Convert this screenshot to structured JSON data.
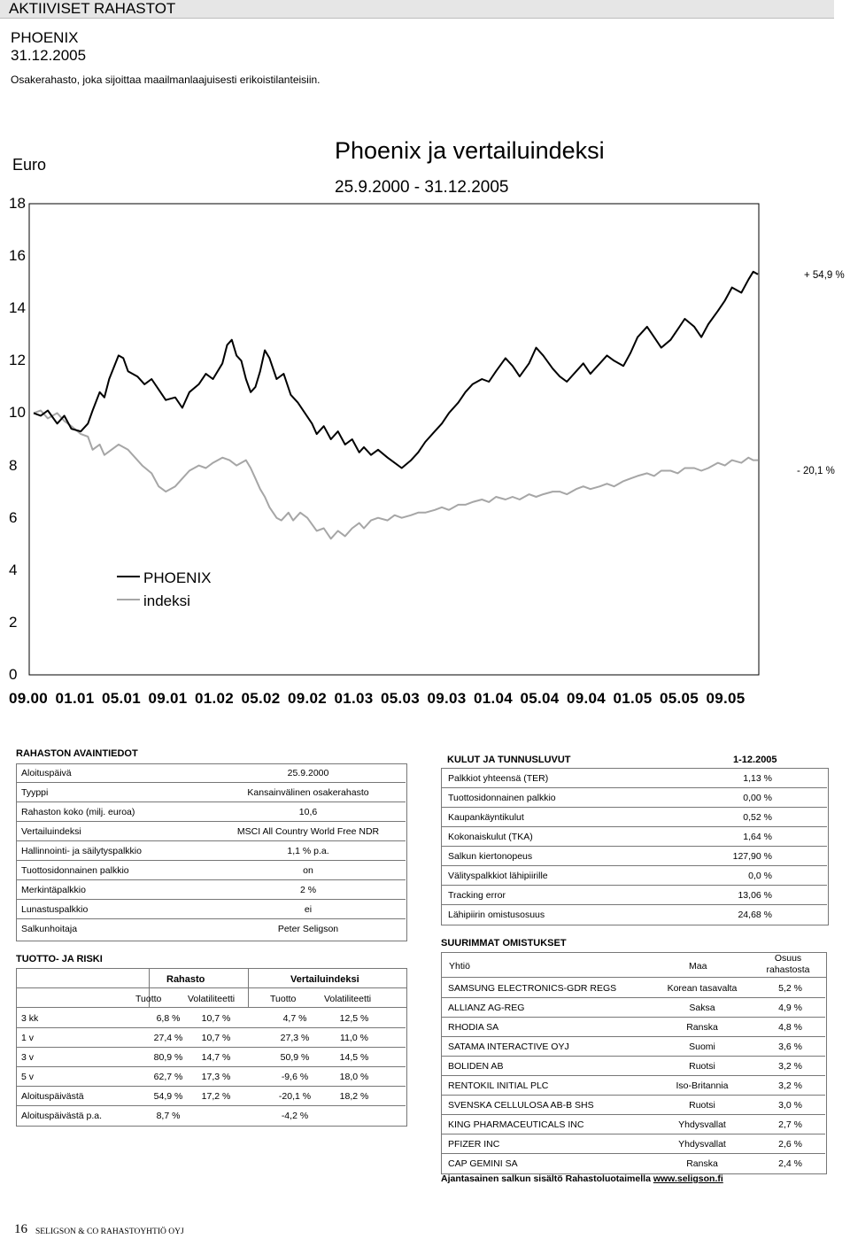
{
  "header": {
    "section_title": "AKTIIVISET RAHASTOT",
    "fund_name": "PHOENIX",
    "date": "31.12.2005",
    "description": "Osakerahasto, joka sijoittaa maailmanlaajuisesti erikoistilanteisiin."
  },
  "chart_data": {
    "type": "line",
    "title": "Phoenix ja vertailuindeksi",
    "subtitle": "25.9.2000 - 31.12.2005",
    "ylabel": "Euro",
    "ylim": [
      0,
      18
    ],
    "yticks": [
      "18",
      "16",
      "14",
      "12",
      "10",
      "8",
      "6",
      "4",
      "2",
      "0"
    ],
    "x_tick_labels": [
      "09.00",
      "01.01",
      "05.01",
      "09.01",
      "01.02",
      "05.02",
      "09.02",
      "01.03",
      "05.03",
      "09.03",
      "01.04",
      "05.04",
      "09.04",
      "01.05",
      "05.05",
      "09.05"
    ],
    "grid": false,
    "legend_position": "left-lower",
    "series": [
      {
        "name": "PHOENIX",
        "color": "#000000",
        "points": [
          [
            0,
            10
          ],
          [
            0.3,
            9.9
          ],
          [
            0.6,
            10.1
          ],
          [
            1,
            9.6
          ],
          [
            1.3,
            9.9
          ],
          [
            1.6,
            9.4
          ],
          [
            2,
            9.3
          ],
          [
            2.3,
            9.6
          ],
          [
            2.5,
            10.1
          ],
          [
            2.8,
            10.8
          ],
          [
            3,
            10.6
          ],
          [
            3.2,
            11.3
          ],
          [
            3.6,
            12.2
          ],
          [
            3.8,
            12.1
          ],
          [
            4,
            11.6
          ],
          [
            4.4,
            11.4
          ],
          [
            4.7,
            11.1
          ],
          [
            5,
            11.3
          ],
          [
            5.3,
            10.9
          ],
          [
            5.6,
            10.5
          ],
          [
            6,
            10.6
          ],
          [
            6.3,
            10.2
          ],
          [
            6.6,
            10.8
          ],
          [
            7,
            11.1
          ],
          [
            7.3,
            11.5
          ],
          [
            7.6,
            11.3
          ],
          [
            8,
            11.9
          ],
          [
            8.2,
            12.6
          ],
          [
            8.4,
            12.8
          ],
          [
            8.6,
            12.2
          ],
          [
            8.8,
            12.0
          ],
          [
            9,
            11.3
          ],
          [
            9.2,
            10.8
          ],
          [
            9.4,
            11.0
          ],
          [
            9.6,
            11.6
          ],
          [
            9.8,
            12.4
          ],
          [
            10,
            12.1
          ],
          [
            10.3,
            11.3
          ],
          [
            10.6,
            11.5
          ],
          [
            10.9,
            10.7
          ],
          [
            11.2,
            10.4
          ],
          [
            11.5,
            10.0
          ],
          [
            11.8,
            9.6
          ],
          [
            12,
            9.2
          ],
          [
            12.3,
            9.5
          ],
          [
            12.6,
            9.0
          ],
          [
            12.9,
            9.3
          ],
          [
            13.2,
            8.8
          ],
          [
            13.5,
            9.0
          ],
          [
            13.8,
            8.5
          ],
          [
            14,
            8.7
          ],
          [
            14.3,
            8.4
          ],
          [
            14.6,
            8.6
          ],
          [
            15,
            8.3
          ],
          [
            15.3,
            8.1
          ],
          [
            15.6,
            7.9
          ],
          [
            16,
            8.2
          ],
          [
            16.3,
            8.5
          ],
          [
            16.6,
            8.9
          ],
          [
            17,
            9.3
          ],
          [
            17.3,
            9.6
          ],
          [
            17.6,
            10.0
          ],
          [
            18,
            10.4
          ],
          [
            18.3,
            10.8
          ],
          [
            18.6,
            11.1
          ],
          [
            19,
            11.3
          ],
          [
            19.3,
            11.2
          ],
          [
            19.6,
            11.6
          ],
          [
            20,
            12.1
          ],
          [
            20.3,
            11.8
          ],
          [
            20.6,
            11.4
          ],
          [
            21,
            11.9
          ],
          [
            21.3,
            12.5
          ],
          [
            21.6,
            12.2
          ],
          [
            22,
            11.7
          ],
          [
            22.3,
            11.4
          ],
          [
            22.6,
            11.2
          ],
          [
            23,
            11.6
          ],
          [
            23.3,
            11.9
          ],
          [
            23.6,
            11.5
          ],
          [
            24,
            11.9
          ],
          [
            24.3,
            12.2
          ],
          [
            24.6,
            12.0
          ],
          [
            25,
            11.8
          ],
          [
            25.3,
            12.3
          ],
          [
            25.6,
            12.9
          ],
          [
            26,
            13.3
          ],
          [
            26.3,
            12.9
          ],
          [
            26.6,
            12.5
          ],
          [
            27,
            12.8
          ],
          [
            27.3,
            13.2
          ],
          [
            27.6,
            13.6
          ],
          [
            28,
            13.3
          ],
          [
            28.3,
            12.9
          ],
          [
            28.6,
            13.4
          ],
          [
            29,
            13.9
          ],
          [
            29.3,
            14.3
          ],
          [
            29.6,
            14.8
          ],
          [
            30,
            14.6
          ],
          [
            30.3,
            15.1
          ],
          [
            30.5,
            15.4
          ],
          [
            30.7,
            15.3
          ]
        ]
      },
      {
        "name": "indeksi",
        "color": "#a6a6a6",
        "points": [
          [
            0,
            10
          ],
          [
            0.3,
            10.1
          ],
          [
            0.6,
            9.8
          ],
          [
            1,
            10
          ],
          [
            1.3,
            9.7
          ],
          [
            1.6,
            9.5
          ],
          [
            2,
            9.2
          ],
          [
            2.3,
            9.1
          ],
          [
            2.5,
            8.6
          ],
          [
            2.8,
            8.8
          ],
          [
            3,
            8.4
          ],
          [
            3.3,
            8.6
          ],
          [
            3.6,
            8.8
          ],
          [
            4,
            8.6
          ],
          [
            4.3,
            8.3
          ],
          [
            4.6,
            8.0
          ],
          [
            5,
            7.7
          ],
          [
            5.3,
            7.2
          ],
          [
            5.6,
            7.0
          ],
          [
            6,
            7.2
          ],
          [
            6.3,
            7.5
          ],
          [
            6.6,
            7.8
          ],
          [
            7,
            8.0
          ],
          [
            7.3,
            7.9
          ],
          [
            7.6,
            8.1
          ],
          [
            8,
            8.3
          ],
          [
            8.3,
            8.2
          ],
          [
            8.6,
            8.0
          ],
          [
            9,
            8.2
          ],
          [
            9.2,
            7.9
          ],
          [
            9.4,
            7.5
          ],
          [
            9.6,
            7.1
          ],
          [
            9.8,
            6.8
          ],
          [
            10,
            6.4
          ],
          [
            10.3,
            6.0
          ],
          [
            10.5,
            5.9
          ],
          [
            10.8,
            6.2
          ],
          [
            11,
            5.9
          ],
          [
            11.3,
            6.2
          ],
          [
            11.6,
            6.0
          ],
          [
            12,
            5.5
          ],
          [
            12.3,
            5.6
          ],
          [
            12.6,
            5.2
          ],
          [
            12.9,
            5.5
          ],
          [
            13.2,
            5.3
          ],
          [
            13.5,
            5.6
          ],
          [
            13.8,
            5.8
          ],
          [
            14,
            5.6
          ],
          [
            14.3,
            5.9
          ],
          [
            14.6,
            6.0
          ],
          [
            15,
            5.9
          ],
          [
            15.3,
            6.1
          ],
          [
            15.6,
            6.0
          ],
          [
            16,
            6.1
          ],
          [
            16.3,
            6.2
          ],
          [
            16.6,
            6.2
          ],
          [
            17,
            6.3
          ],
          [
            17.3,
            6.4
          ],
          [
            17.6,
            6.3
          ],
          [
            18,
            6.5
          ],
          [
            18.3,
            6.5
          ],
          [
            18.6,
            6.6
          ],
          [
            19,
            6.7
          ],
          [
            19.3,
            6.6
          ],
          [
            19.6,
            6.8
          ],
          [
            20,
            6.7
          ],
          [
            20.3,
            6.8
          ],
          [
            20.6,
            6.7
          ],
          [
            21,
            6.9
          ],
          [
            21.3,
            6.8
          ],
          [
            21.6,
            6.9
          ],
          [
            22,
            7.0
          ],
          [
            22.3,
            7.0
          ],
          [
            22.6,
            6.9
          ],
          [
            23,
            7.1
          ],
          [
            23.3,
            7.2
          ],
          [
            23.6,
            7.1
          ],
          [
            24,
            7.2
          ],
          [
            24.3,
            7.3
          ],
          [
            24.6,
            7.2
          ],
          [
            25,
            7.4
          ],
          [
            25.3,
            7.5
          ],
          [
            25.6,
            7.6
          ],
          [
            26,
            7.7
          ],
          [
            26.3,
            7.6
          ],
          [
            26.6,
            7.8
          ],
          [
            27,
            7.8
          ],
          [
            27.3,
            7.7
          ],
          [
            27.6,
            7.9
          ],
          [
            28,
            7.9
          ],
          [
            28.3,
            7.8
          ],
          [
            28.6,
            7.9
          ],
          [
            29,
            8.1
          ],
          [
            29.3,
            8.0
          ],
          [
            29.6,
            8.2
          ],
          [
            30,
            8.1
          ],
          [
            30.3,
            8.3
          ],
          [
            30.5,
            8.2
          ],
          [
            30.7,
            8.2
          ]
        ]
      }
    ],
    "end_labels": {
      "phoenix": "+ 54,9 %",
      "index": "- 20,1 %"
    }
  },
  "key_info": {
    "title": "RAHASTON AVAINTIEDOT",
    "rows": [
      {
        "k": "Aloituspäivä",
        "v": "25.9.2000"
      },
      {
        "k": "Tyyppi",
        "v": "Kansainvälinen osakerahasto"
      },
      {
        "k": "Rahaston koko (milj. euroa)",
        "v": "10,6"
      },
      {
        "k": "Vertailuindeksi",
        "v": "MSCI All Country World Free NDR"
      },
      {
        "k": "Hallinnointi- ja säilytyspalkkio",
        "v": "1,1 % p.a."
      },
      {
        "k": "Tuottosidonnainen palkkio",
        "v": "on"
      },
      {
        "k": "Merkintäpalkkio",
        "v": "2 %"
      },
      {
        "k": "Lunastuspalkkio",
        "v": "ei"
      },
      {
        "k": "Salkunhoitaja",
        "v": "Peter Seligson"
      }
    ]
  },
  "risk": {
    "title": "TUOTTO- JA RISKI",
    "group_fund": "Rahasto",
    "group_index": "Vertailuindeksi",
    "cols": [
      "Tuotto",
      "Volatiliteetti",
      "Tuotto",
      "Volatiliteetti"
    ],
    "rows": [
      {
        "label": "3 kk",
        "v": [
          "6,8 %",
          "10,7 %",
          "4,7 %",
          "12,5 %"
        ]
      },
      {
        "label": "1 v",
        "v": [
          "27,4 %",
          "10,7 %",
          "27,3 %",
          "11,0 %"
        ]
      },
      {
        "label": "3 v",
        "v": [
          "80,9 %",
          "14,7 %",
          "50,9 %",
          "14,5 %"
        ]
      },
      {
        "label": "5 v",
        "v": [
          "62,7 %",
          "17,3 %",
          "-9,6 %",
          "18,0 %"
        ]
      },
      {
        "label": "Aloituspäivästä",
        "v": [
          "54,9 %",
          "17,2 %",
          "-20,1 %",
          "18,2 %"
        ]
      },
      {
        "label": "Aloituspäivästä p.a.",
        "v": [
          "8,7 %",
          "",
          "-4,2 %",
          ""
        ]
      }
    ]
  },
  "costs": {
    "title": "KULUT JA TUNNUSLUVUT",
    "period": "1-12.2005",
    "rows": [
      {
        "k": "Palkkiot yhteensä (TER)",
        "v": "1,13 %"
      },
      {
        "k": "Tuottosidonnainen palkkio",
        "v": "0,00 %"
      },
      {
        "k": "Kaupankäyntikulut",
        "v": "0,52 %"
      },
      {
        "k": "Kokonaiskulut (TKA)",
        "v": "1,64 %"
      },
      {
        "k": "Salkun kiertonopeus",
        "v": "127,90 %"
      },
      {
        "k": "Välityspalkkiot lähipiirille",
        "v": "0,0 %"
      },
      {
        "k": "Tracking error",
        "v": "13,06 %"
      },
      {
        "k": "Lähipiirin omistusosuus",
        "v": "24,68 %"
      }
    ]
  },
  "holdings": {
    "title": "SUURIMMAT OMISTUKSET",
    "col_company": "Yhtiö",
    "col_country": "Maa",
    "col_share_1": "Osuus",
    "col_share_2": "rahastosta",
    "rows": [
      {
        "k": "SAMSUNG ELECTRONICS-GDR REGS",
        "c": "Korean tasavalta",
        "v": "5,2 %"
      },
      {
        "k": "ALLIANZ AG-REG",
        "c": "Saksa",
        "v": "4,9 %"
      },
      {
        "k": "RHODIA SA",
        "c": "Ranska",
        "v": "4,8 %"
      },
      {
        "k": "SATAMA INTERACTIVE OYJ",
        "c": "Suomi",
        "v": "3,6 %"
      },
      {
        "k": "BOLIDEN AB",
        "c": "Ruotsi",
        "v": "3,2 %"
      },
      {
        "k": "RENTOKIL INITIAL PLC",
        "c": "Iso-Britannia",
        "v": "3,2 %"
      },
      {
        "k": "SVENSKA CELLULOSA AB-B SHS",
        "c": "Ruotsi",
        "v": "3,0 %"
      },
      {
        "k": "KING PHARMACEUTICALS INC",
        "c": "Yhdysvallat",
        "v": "2,7 %"
      },
      {
        "k": "PFIZER INC",
        "c": "Yhdysvallat",
        "v": "2,6 %"
      },
      {
        "k": "CAP GEMINI SA",
        "c": "Ranska",
        "v": "2,4 %"
      }
    ],
    "note_prefix": "Ajantasainen salkun sisältö Rahastoluotaimella ",
    "note_link": "www.seligson.fi"
  },
  "footer": {
    "page": "16",
    "publisher": "SELIGSON & CO RAHASTOYHTIÖ OYJ"
  }
}
